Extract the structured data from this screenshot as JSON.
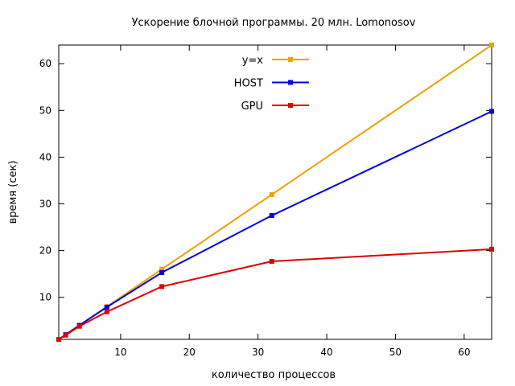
{
  "chart_data": {
    "type": "line",
    "title": "Ускорение блочной программы. 20 млн. Lomonosov",
    "xlabel": "количество процессов",
    "ylabel": "время (сек)",
    "xlim": [
      1,
      64
    ],
    "ylim": [
      1,
      64
    ],
    "xticks": [
      10,
      20,
      30,
      40,
      50,
      60
    ],
    "yticks": [
      10,
      20,
      30,
      40,
      50,
      60
    ],
    "grid": false,
    "legend_position": "top-center",
    "series": [
      {
        "name": "y=x",
        "color": "#f0a000",
        "x": [
          1,
          2,
          4,
          8,
          16,
          32,
          64
        ],
        "y": [
          1,
          2,
          4,
          8,
          16,
          32,
          64
        ]
      },
      {
        "name": "HOST",
        "color": "#0000e0",
        "x": [
          1,
          2,
          4,
          8,
          16,
          32,
          64
        ],
        "y": [
          1,
          2,
          4,
          7.9,
          15.3,
          27.5,
          49.8
        ]
      },
      {
        "name": "GPU",
        "color": "#e00000",
        "x": [
          1,
          2,
          4,
          8,
          16,
          32,
          64
        ],
        "y": [
          1,
          1.9,
          3.8,
          6.9,
          12.3,
          17.7,
          20.3
        ]
      }
    ]
  }
}
